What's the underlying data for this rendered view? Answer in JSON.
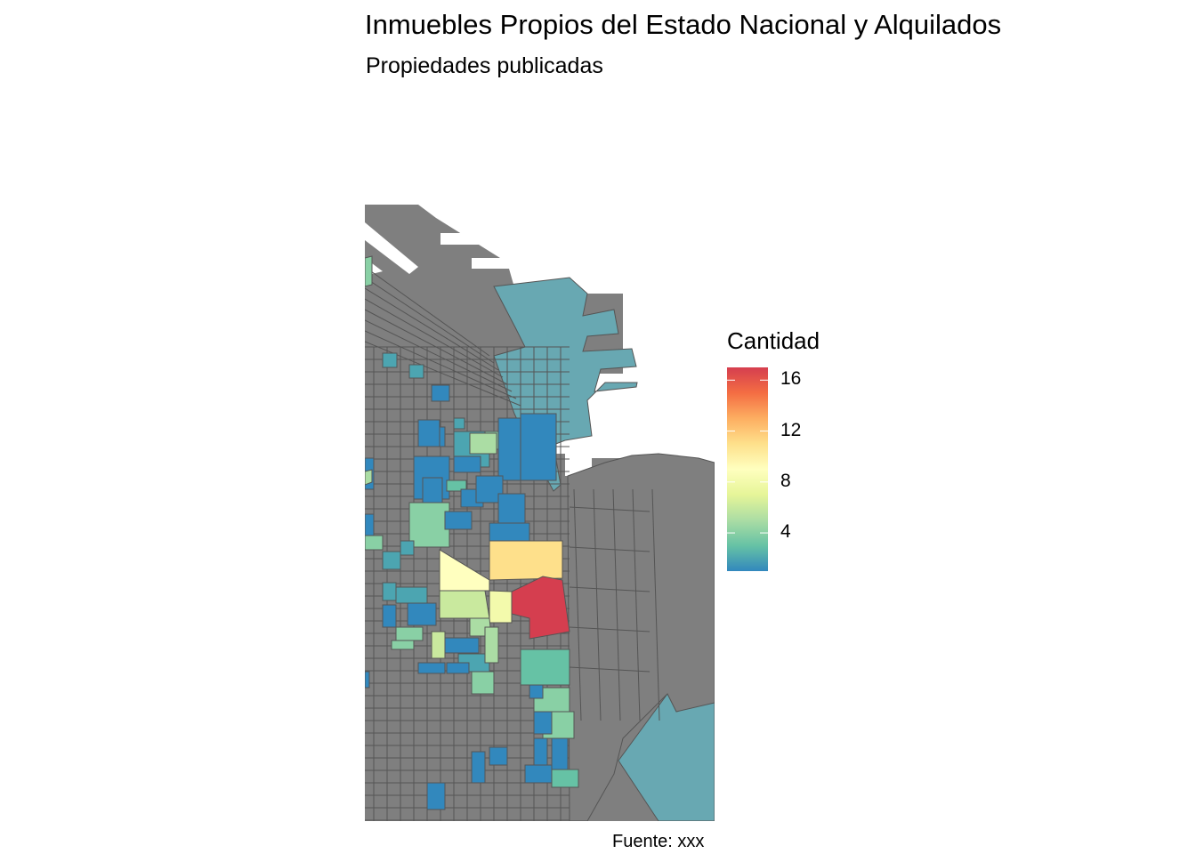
{
  "map": {
    "title": "Inmuebles Propios del Estado Nacional y Alquilados",
    "subtitle": "Propiedades publicadas",
    "caption": "Fuente: xxx",
    "legend": {
      "title": "Cantidad",
      "breaks": [
        {
          "label": "16",
          "value": 16
        },
        {
          "label": "12",
          "value": 12
        },
        {
          "label": "8",
          "value": 8
        },
        {
          "label": "4",
          "value": 4
        }
      ],
      "range": [
        1,
        17
      ],
      "palette": [
        "#3288bd",
        "#66c2a5",
        "#abdda4",
        "#e6f598",
        "#ffffbf",
        "#fee08b",
        "#fdae61",
        "#f46d43",
        "#d53e4f"
      ]
    },
    "no_data_color": "#7f7f7f",
    "water_color": "#68a8b2",
    "border_color": "#555555"
  }
}
